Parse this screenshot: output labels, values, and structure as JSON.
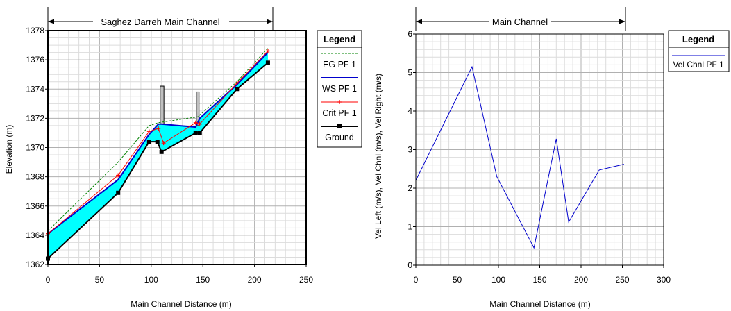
{
  "chart_data": [
    {
      "type": "line",
      "title": "Saghez Darreh Main Channel",
      "xlabel": "Main Channel Distance (m)",
      "ylabel": "Elevation (m)",
      "xlim": [
        0,
        250
      ],
      "ylim": [
        1362,
        1378
      ],
      "x_ticks": [
        "0",
        "50",
        "100",
        "150",
        "200",
        "250"
      ],
      "y_ticks": [
        "1362",
        "1364",
        "1366",
        "1368",
        "1370",
        "1372",
        "1374",
        "1376",
        "1378"
      ],
      "grid": true,
      "legend_title": "Legend",
      "legend_position": "right",
      "series": [
        {
          "name": "EG  PF 1",
          "color": "#008000",
          "style": "dashed",
          "x": [
            0,
            68,
            98,
            107,
            145,
            183,
            213
          ],
          "y": [
            1364.3,
            1369.0,
            1371.5,
            1371.7,
            1372.1,
            1374.5,
            1376.8
          ]
        },
        {
          "name": "WS  PF 1",
          "color": "#0000cc",
          "style": "solid",
          "x": [
            0,
            68,
            98,
            107,
            110,
            143,
            147,
            183,
            213
          ],
          "y": [
            1364.1,
            1367.8,
            1370.9,
            1371.6,
            1371.6,
            1371.4,
            1372.0,
            1374.3,
            1376.5
          ]
        },
        {
          "name": "Crit  PF 1",
          "color": "#ff0000",
          "style": "marker-plus",
          "x": [
            0,
            68,
            98,
            107,
            112,
            143,
            147,
            183,
            213
          ],
          "y": [
            1364.1,
            1368.1,
            1371.1,
            1371.3,
            1370.3,
            1371.7,
            1371.6,
            1374.4,
            1376.6
          ]
        },
        {
          "name": "Ground",
          "color": "#000000",
          "style": "solid-square",
          "x": [
            0,
            68,
            98,
            106,
            110,
            143,
            147,
            183,
            213
          ],
          "y": [
            1362.4,
            1366.9,
            1370.4,
            1370.4,
            1369.7,
            1371.0,
            1371.0,
            1374.0,
            1375.8
          ]
        }
      ],
      "structures": [
        {
          "x_from": 108,
          "x_to": 113,
          "y_from": 1371.6,
          "y_to": 1374.2
        },
        {
          "x_from": 143,
          "x_to": 147,
          "y_from": 1371.5,
          "y_to": 1373.8
        }
      ],
      "fill_color": "#00ffff"
    },
    {
      "type": "line",
      "title": "Main Channel",
      "xlabel": "Main Channel Distance (m)",
      "ylabel": "Vel Left (m/s),  Vel Chnl (m/s),  Vel Right (m/s)",
      "xlim": [
        0,
        300
      ],
      "ylim": [
        0,
        6
      ],
      "x_ticks": [
        "0",
        "50",
        "100",
        "150",
        "200",
        "250",
        "300"
      ],
      "y_ticks": [
        "0",
        "1",
        "2",
        "3",
        "4",
        "5",
        "6"
      ],
      "grid": true,
      "legend_title": "Legend",
      "legend_position": "right",
      "series": [
        {
          "name": "Vel Chnl PF 1",
          "color": "#0000cc",
          "x": [
            0,
            68,
            98,
            143,
            170,
            185,
            222,
            252
          ],
          "y": [
            2.2,
            5.15,
            2.3,
            0.45,
            3.28,
            1.12,
            2.47,
            2.62
          ]
        }
      ]
    }
  ]
}
